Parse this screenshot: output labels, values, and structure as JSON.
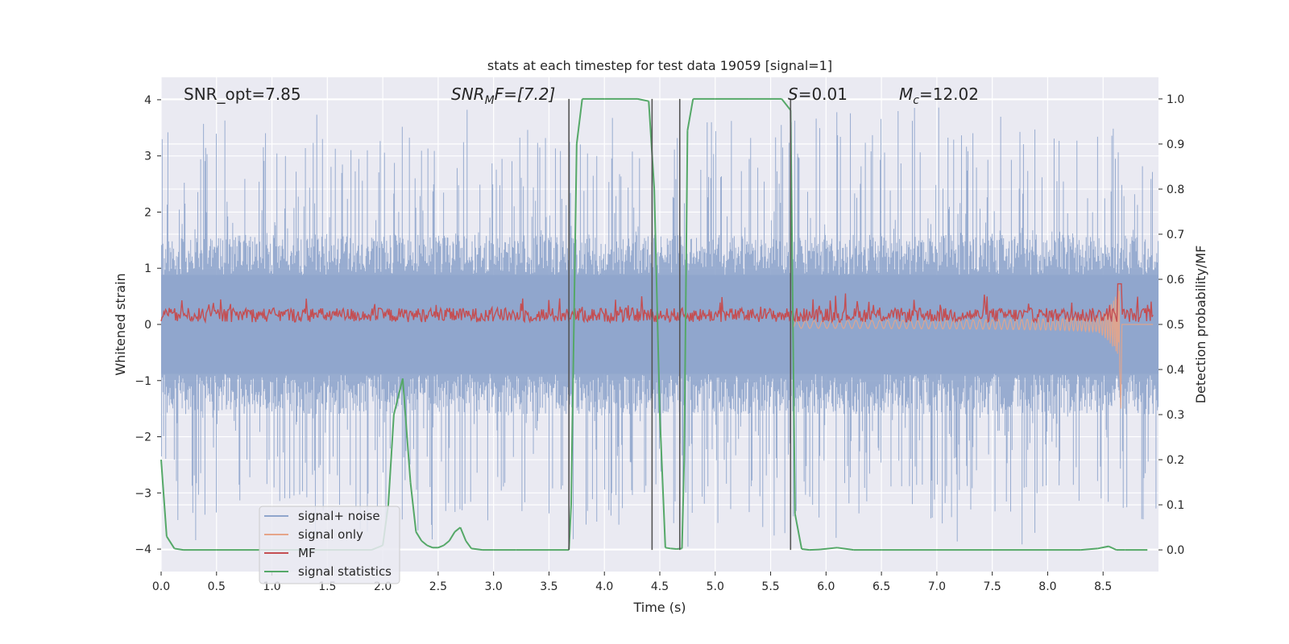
{
  "chart_data": {
    "type": "line",
    "title": "stats at each timestep for test data 19059 [signal=1]",
    "xlabel": "Time (s)",
    "ylabel_left": "Whitened strain",
    "ylabel_right": "Detection probability/MF",
    "xlim": [
      0,
      9.0
    ],
    "ylim_left": [
      -4.4,
      4.4
    ],
    "ylim_right": [
      -0.048,
      1.048
    ],
    "x_ticks": [
      0.0,
      0.5,
      1.0,
      1.5,
      2.0,
      2.5,
      3.0,
      3.5,
      4.0,
      4.5,
      5.0,
      5.5,
      6.0,
      6.5,
      7.0,
      7.5,
      8.0,
      8.5
    ],
    "x_tick_labels": [
      "0.0",
      "0.5",
      "1.0",
      "1.5",
      "2.0",
      "2.5",
      "3.0",
      "3.5",
      "4.0",
      "4.5",
      "5.0",
      "5.5",
      "6.0",
      "6.5",
      "7.0",
      "7.5",
      "8.0",
      "8.5"
    ],
    "y_left_ticks": [
      4,
      3,
      2,
      1,
      0,
      -1,
      -2,
      -3,
      -4
    ],
    "y_left_tick_labels": [
      "4",
      "3",
      "2",
      "1",
      "0",
      "−1",
      "−2",
      "−3",
      "−4"
    ],
    "y_right_ticks": [
      1.0,
      0.9,
      0.8,
      0.7,
      0.6,
      0.5,
      0.4,
      0.3,
      0.2,
      0.1,
      0.0
    ],
    "y_right_tick_labels": [
      "1.0",
      "0.9",
      "0.8",
      "0.7",
      "0.6",
      "0.5",
      "0.4",
      "0.3",
      "0.2",
      "0.1",
      "0.0"
    ],
    "grid": true,
    "legend_position": "lower-left",
    "annotations": {
      "snr_opt": "SNR_opt=7.85",
      "snr_mf_base": "SNR",
      "snr_mf_sub": "M",
      "snr_mf_rest": "F=[7.2]",
      "s_label": "S",
      "s_value": "=0.01",
      "mc_label": "M",
      "mc_sub": "c",
      "mc_value": "=12.02"
    },
    "vertical_lines_x": [
      3.68,
      4.43,
      4.68,
      5.68
    ],
    "series": [
      {
        "name": "signal+ noise",
        "color": "#8fa5cc",
        "axis": "left",
        "note": "whitened noisy strain, roughly symmetric noise with amplitude up to about +/-4",
        "envelope_typical": 1.6,
        "envelope_max": 4.0
      },
      {
        "name": "signal only",
        "color": "#e6a589",
        "axis": "left",
        "note": "chirp waveform growing toward merger",
        "merger_time": 8.65,
        "peak_amplitude": 1.1
      },
      {
        "name": "MF",
        "color": "#c44e52",
        "axis": "right",
        "note": "matched filter output fluctuating near 0.5-0.56",
        "base": 0.505,
        "spread": 0.045
      },
      {
        "name": "signal statistics",
        "color": "#55a868",
        "axis": "right",
        "x": [
          0.0,
          0.05,
          0.12,
          0.2,
          0.5,
          1.0,
          1.5,
          1.9,
          2.0,
          2.05,
          2.1,
          2.18,
          2.25,
          2.3,
          2.35,
          2.4,
          2.45,
          2.5,
          2.55,
          2.6,
          2.65,
          2.7,
          2.75,
          2.8,
          2.9,
          3.0,
          3.2,
          3.5,
          3.68,
          3.7,
          3.75,
          3.8,
          4.0,
          4.3,
          4.4,
          4.45,
          4.5,
          4.55,
          4.6,
          4.65,
          4.7,
          4.72,
          4.75,
          4.8,
          5.0,
          5.3,
          5.6,
          5.68,
          5.72,
          5.78,
          5.85,
          5.95,
          6.1,
          6.25,
          6.5,
          7.0,
          7.5,
          8.0,
          8.3,
          8.45,
          8.55,
          8.62,
          8.7,
          8.9
        ],
        "values": [
          0.2,
          0.03,
          0.003,
          0.0,
          0.0,
          0.0,
          0.0,
          0.0,
          0.01,
          0.1,
          0.3,
          0.38,
          0.15,
          0.04,
          0.02,
          0.01,
          0.005,
          0.005,
          0.01,
          0.02,
          0.04,
          0.05,
          0.02,
          0.003,
          0.0,
          0.0,
          0.0,
          0.0,
          0.0,
          0.1,
          0.9,
          1.0,
          1.0,
          1.0,
          0.995,
          0.8,
          0.3,
          0.005,
          0.003,
          0.002,
          0.003,
          0.2,
          0.93,
          1.0,
          1.0,
          1.0,
          1.0,
          0.975,
          0.08,
          0.002,
          0.0,
          0.001,
          0.005,
          0.0,
          0.0,
          0.0,
          0.0,
          0.0,
          0.0,
          0.003,
          0.008,
          0.0,
          0.0,
          0.0
        ]
      }
    ]
  }
}
